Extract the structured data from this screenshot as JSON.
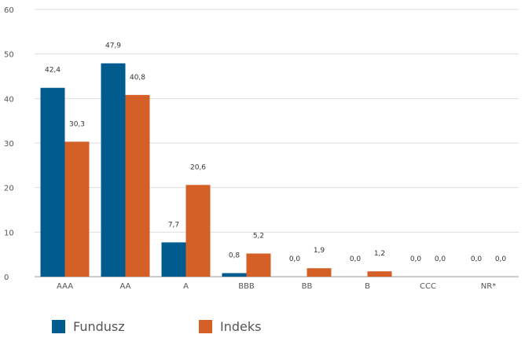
{
  "colors": {
    "fundusz": "#005b8f",
    "indeks": "#d45f27",
    "grid": "#dddddd",
    "axis": "#999999"
  },
  "legend": {
    "fundusz": "Fundusz",
    "indeks": "Indeks"
  },
  "chart_data": {
    "type": "bar",
    "categories": [
      "AAA",
      "AA",
      "A",
      "BBB",
      "BB",
      "B",
      "CCC",
      "NR*"
    ],
    "series": [
      {
        "name": "Fundusz",
        "values": [
          42.4,
          47.9,
          7.7,
          0.8,
          0.0,
          0.0,
          0.0,
          0.0
        ]
      },
      {
        "name": "Indeks",
        "values": [
          30.3,
          40.8,
          20.6,
          5.2,
          1.9,
          1.2,
          0.0,
          0.0
        ]
      }
    ],
    "data_labels": [
      [
        "42,4",
        "47,9",
        "7,7",
        "0,8",
        "0,0",
        "0,0",
        "0,0",
        "0,0"
      ],
      [
        "30,3",
        "40,8",
        "20,6",
        "5,2",
        "1,9",
        "1,2",
        "0,0",
        "0,0"
      ]
    ],
    "y_ticks": [
      "0",
      "10",
      "20",
      "30",
      "40",
      "50",
      "60"
    ],
    "ylim": [
      0,
      60
    ],
    "grid": true,
    "legend_position": "bottom-left"
  }
}
